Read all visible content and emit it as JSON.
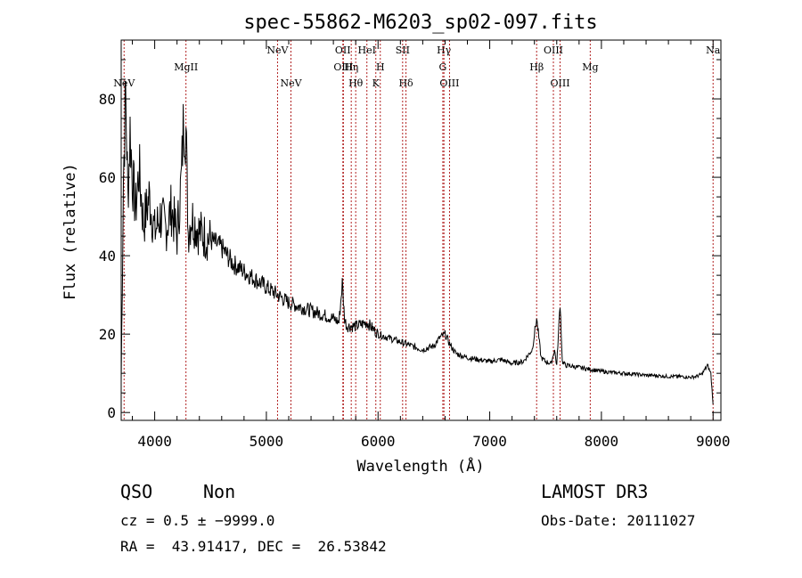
{
  "chart_data": {
    "type": "line",
    "title": "spec-55862-M6203_sp02-097.fits",
    "xlabel": "Wavelength (Å)",
    "ylabel": "Flux (relative)",
    "xlim": [
      3700,
      9070
    ],
    "ylim": [
      -2,
      95
    ],
    "xticks": [
      4000,
      5000,
      6000,
      7000,
      8000,
      9000
    ],
    "yticks": [
      0,
      20,
      40,
      60,
      80
    ],
    "tick_labels_x": [
      "4000",
      "5000",
      "6000",
      "7000",
      "8000",
      "9000"
    ],
    "tick_labels_y": [
      "0",
      "20",
      "40",
      "60",
      "80"
    ],
    "series": [
      {
        "name": "flux",
        "x": [
          3700,
          3720,
          3740,
          3760,
          3780,
          3800,
          3830,
          3860,
          3900,
          3950,
          4000,
          4050,
          4100,
          4150,
          4200,
          4240,
          4260,
          4280,
          4300,
          4330,
          4400,
          4500,
          4600,
          4700,
          4800,
          4900,
          5000,
          5100,
          5200,
          5300,
          5400,
          5500,
          5600,
          5650,
          5680,
          5700,
          5720,
          5800,
          5900,
          6000,
          6100,
          6200,
          6300,
          6400,
          6500,
          6550,
          6600,
          6650,
          6700,
          6800,
          6900,
          7000,
          7100,
          7200,
          7300,
          7380,
          7420,
          7460,
          7500,
          7550,
          7580,
          7600,
          7630,
          7650,
          7680,
          7700,
          7800,
          7900,
          8000,
          8100,
          8200,
          8300,
          8400,
          8500,
          8600,
          8700,
          8800,
          8850,
          8900,
          8950,
          8980,
          9000
        ],
        "values": [
          8,
          60,
          82,
          55,
          72,
          60,
          52,
          62,
          48,
          55,
          46,
          50,
          47,
          52,
          45,
          60,
          76,
          72,
          46,
          50,
          46,
          44,
          42,
          38,
          36,
          34,
          32,
          30,
          28,
          27,
          26,
          25,
          24,
          23,
          33,
          24,
          22,
          22,
          23,
          20,
          19,
          18,
          17,
          16,
          17,
          19,
          20,
          17,
          15,
          14,
          13.5,
          13,
          13.5,
          12.5,
          13,
          16,
          24,
          14,
          13,
          12.5,
          16,
          12,
          28,
          13,
          12,
          12,
          11.5,
          11,
          10.5,
          10.2,
          10,
          9.8,
          9.5,
          9.4,
          9.2,
          9.2,
          9,
          9.2,
          9.8,
          12,
          10,
          2
        ]
      }
    ],
    "line_markers": [
      {
        "label": "NeV",
        "wavelength": 3726,
        "row": 2
      },
      {
        "label": "MgII",
        "wavelength": 4280,
        "row": 1
      },
      {
        "label": "NeV",
        "wavelength": 5100,
        "row": 0
      },
      {
        "label": "NeV",
        "wavelength": 5220,
        "row": 2
      },
      {
        "label": "OII",
        "wavelength": 5685,
        "row": 0
      },
      {
        "label": "OIII",
        "wavelength": 5690,
        "row": 1
      },
      {
        "label": "Hη",
        "wavelength": 5760,
        "row": 1
      },
      {
        "label": "Hθ",
        "wavelength": 5800,
        "row": 2
      },
      {
        "label": "HeI",
        "wavelength": 5900,
        "row": 0
      },
      {
        "label": "H",
        "wavelength": 6020,
        "row": 1
      },
      {
        "label": "K",
        "wavelength": 5980,
        "row": 2
      },
      {
        "label": "SII",
        "wavelength": 6220,
        "row": 0
      },
      {
        "label": "Hδ",
        "wavelength": 6250,
        "row": 2
      },
      {
        "label": "Hγ",
        "wavelength": 6590,
        "row": 0
      },
      {
        "label": "G",
        "wavelength": 6580,
        "row": 1
      },
      {
        "label": "OIII",
        "wavelength": 6640,
        "row": 2
      },
      {
        "label": "Hβ",
        "wavelength": 7420,
        "row": 1
      },
      {
        "label": "OIII",
        "wavelength": 7570,
        "row": 0
      },
      {
        "label": "OIII",
        "wavelength": 7630,
        "row": 2
      },
      {
        "label": "Mg",
        "wavelength": 7900,
        "row": 1
      },
      {
        "label": "Na",
        "wavelength": 9000,
        "row": 0
      }
    ],
    "marker_color": "#b22222"
  },
  "info": {
    "class": "QSO",
    "subclass": "Non",
    "survey": "LAMOST DR3",
    "redshift": "cz = 0.5 ± −9999.0",
    "obs_date": "Obs-Date: 20111027",
    "coords": "RA =  43.91417, DEC =  26.53842"
  }
}
